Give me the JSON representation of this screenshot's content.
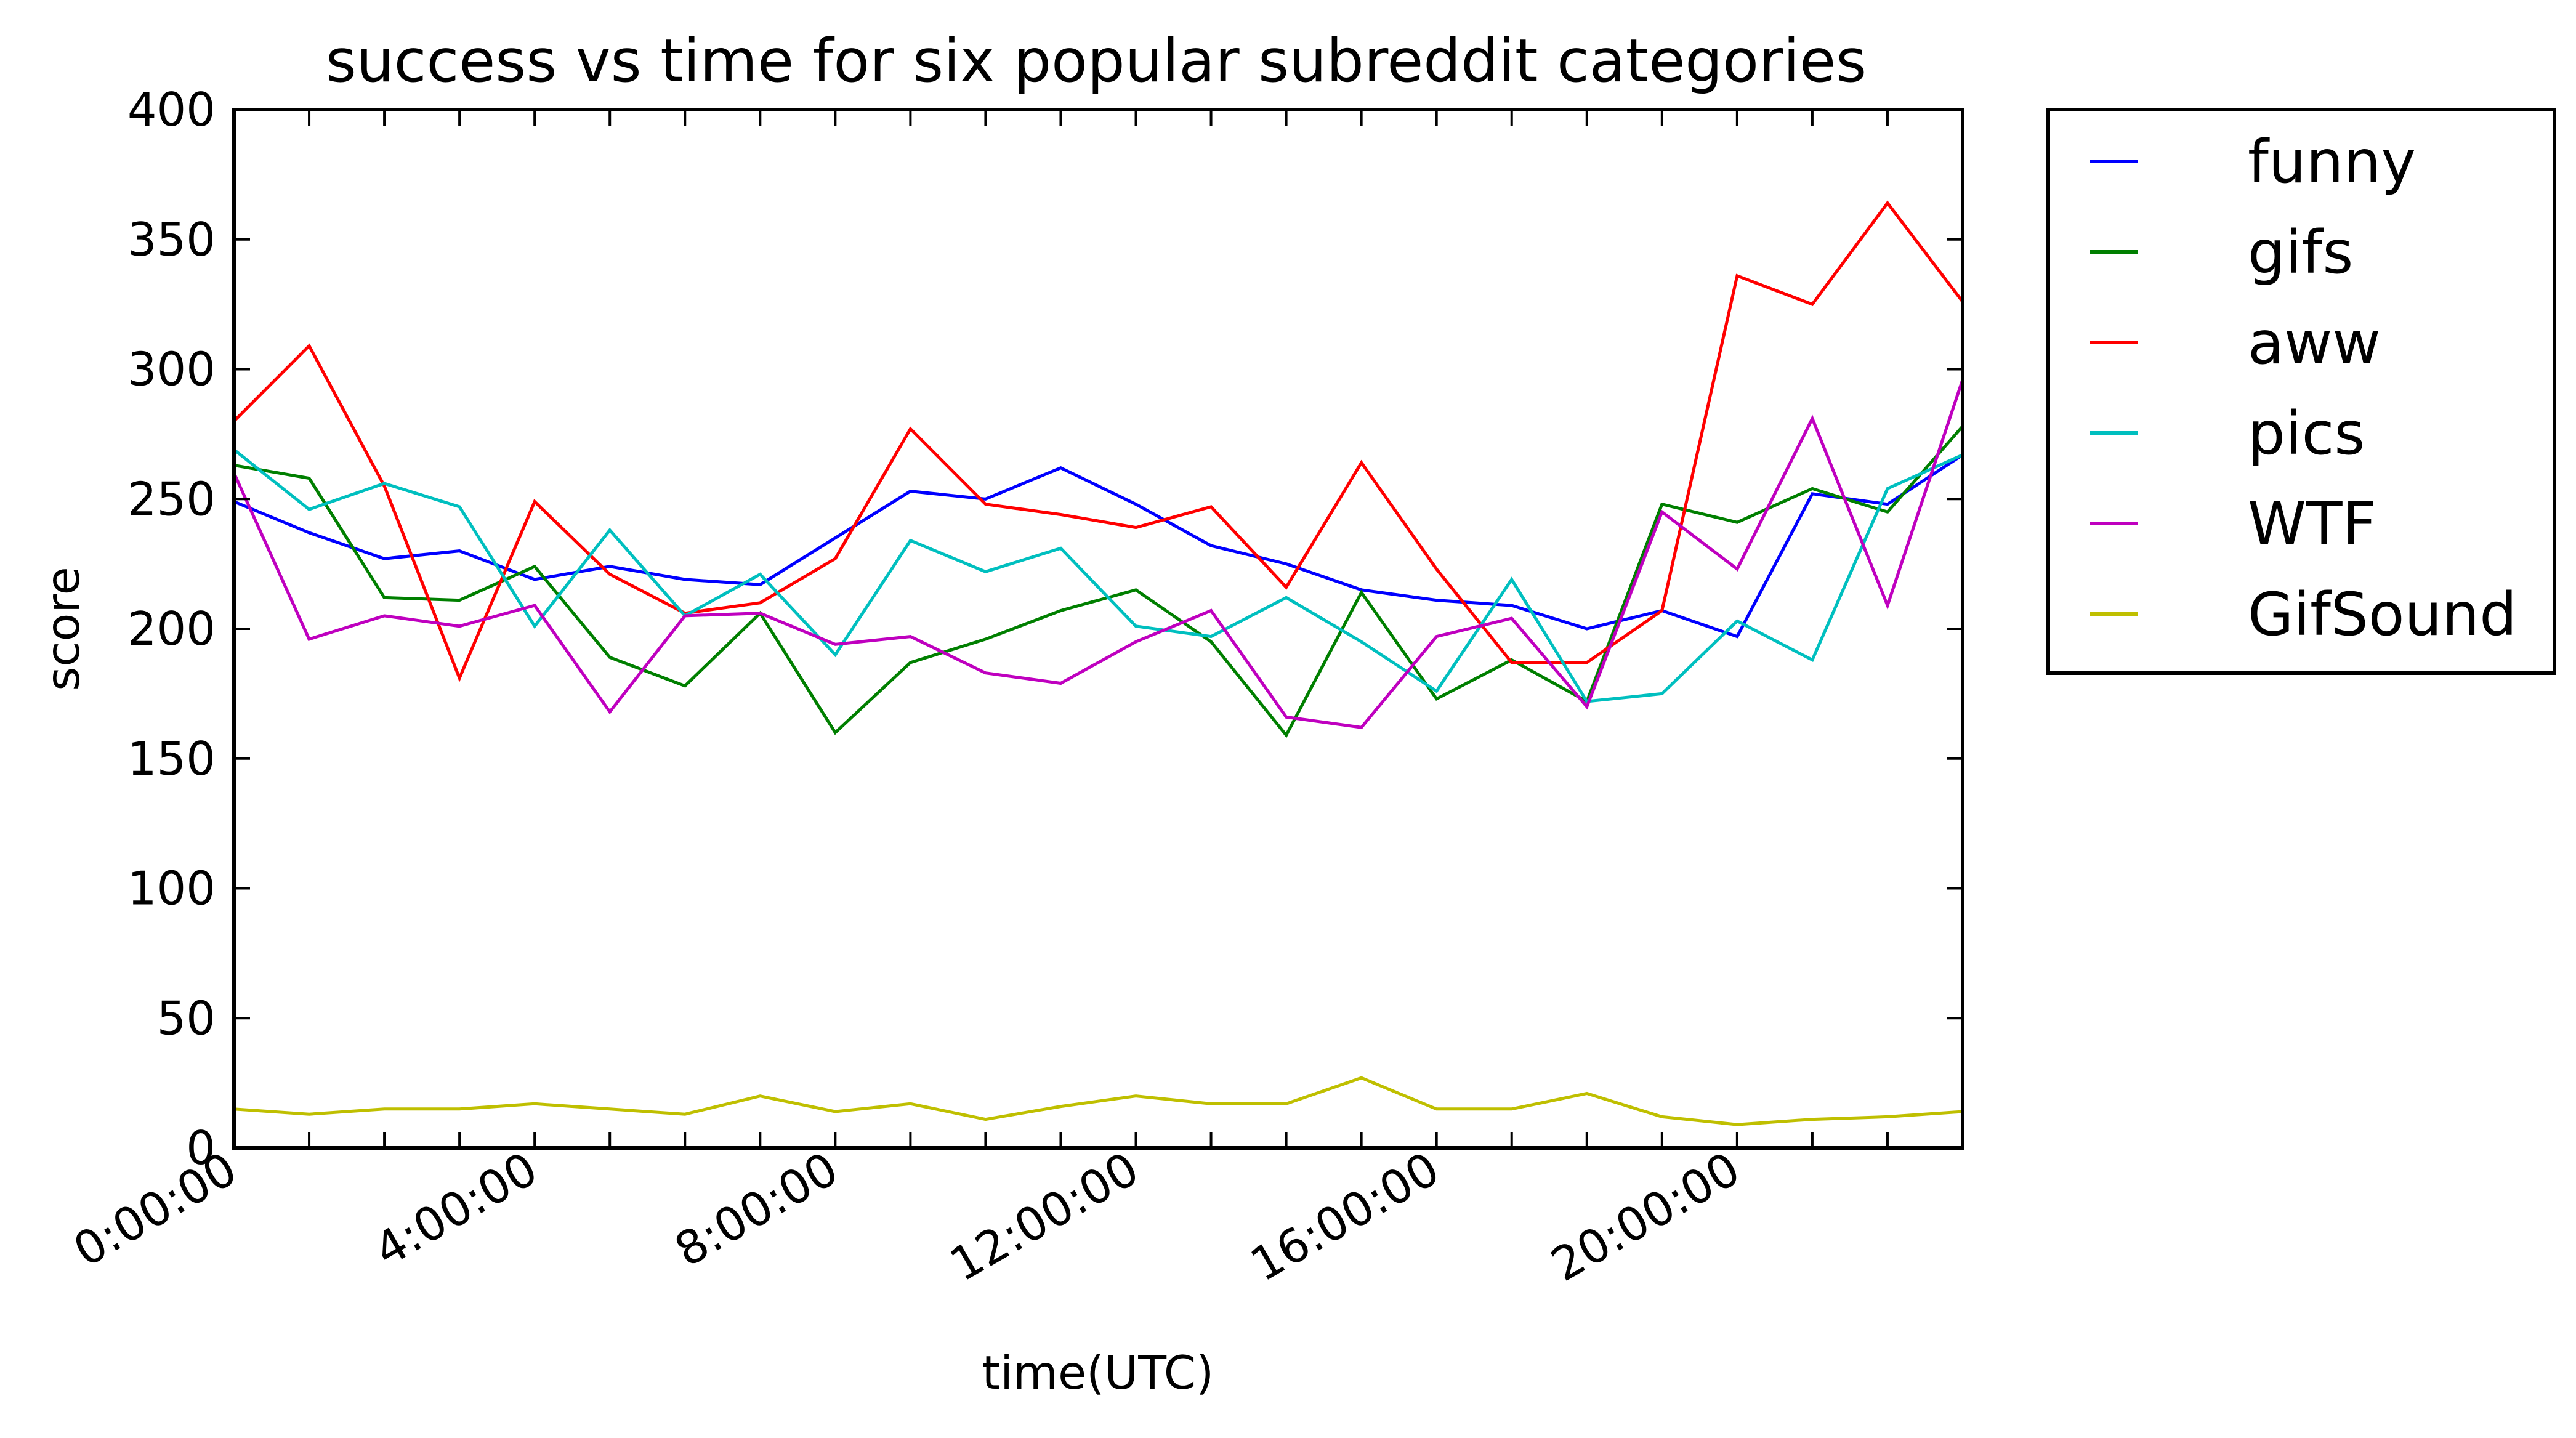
{
  "chart_data": {
    "type": "line",
    "title": "success vs time for six popular subreddit categories",
    "xlabel": "time(UTC)",
    "ylabel": "score",
    "x": [
      0,
      1,
      2,
      3,
      4,
      5,
      6,
      7,
      8,
      9,
      10,
      11,
      12,
      13,
      14,
      15,
      16,
      17,
      18,
      19,
      20,
      21,
      22,
      23
    ],
    "xlim": [
      0,
      23
    ],
    "ylim": [
      0,
      400
    ],
    "xticks": [
      {
        "value": 0,
        "label": "0:00:00"
      },
      {
        "value": 4,
        "label": "4:00:00"
      },
      {
        "value": 8,
        "label": "8:00:00"
      },
      {
        "value": 12,
        "label": "12:00:00"
      },
      {
        "value": 16,
        "label": "16:00:00"
      },
      {
        "value": 20,
        "label": "20:00:00"
      }
    ],
    "yticks": [
      {
        "value": 0,
        "label": "0"
      },
      {
        "value": 50,
        "label": "50"
      },
      {
        "value": 100,
        "label": "100"
      },
      {
        "value": 150,
        "label": "150"
      },
      {
        "value": 200,
        "label": "200"
      },
      {
        "value": 250,
        "label": "250"
      },
      {
        "value": 300,
        "label": "300"
      },
      {
        "value": 350,
        "label": "350"
      },
      {
        "value": 400,
        "label": "400"
      }
    ],
    "grid": false,
    "legend_position": "outside-right",
    "series": [
      {
        "name": "funny",
        "color": "#0000ff",
        "values": [
          249,
          237,
          227,
          230,
          219,
          224,
          219,
          217,
          235,
          253,
          250,
          262,
          248,
          232,
          225,
          215,
          211,
          209,
          200,
          207,
          197,
          252,
          248,
          267
        ]
      },
      {
        "name": "gifs",
        "color": "#007f00",
        "values": [
          263,
          258,
          212,
          211,
          224,
          189,
          178,
          206,
          160,
          187,
          196,
          207,
          215,
          195,
          159,
          214,
          173,
          188,
          172,
          248,
          241,
          254,
          245,
          278
        ]
      },
      {
        "name": "aww",
        "color": "#ff0000",
        "values": [
          280,
          309,
          255,
          181,
          249,
          221,
          206,
          210,
          227,
          277,
          248,
          244,
          239,
          247,
          216,
          264,
          223,
          187,
          187,
          207,
          336,
          325,
          364,
          326
        ]
      },
      {
        "name": "pics",
        "color": "#00bfbf",
        "values": [
          269,
          246,
          256,
          247,
          201,
          238,
          205,
          221,
          190,
          234,
          222,
          231,
          201,
          197,
          212,
          195,
          176,
          219,
          172,
          175,
          203,
          188,
          254,
          267
        ]
      },
      {
        "name": "WTF",
        "color": "#bf00bf",
        "values": [
          260,
          196,
          205,
          201,
          209,
          168,
          205,
          206,
          194,
          197,
          183,
          179,
          195,
          207,
          166,
          162,
          197,
          204,
          170,
          245,
          223,
          281,
          209,
          296
        ]
      },
      {
        "name": "GifSound",
        "color": "#bfbf00",
        "values": [
          15,
          13,
          15,
          15,
          17,
          15,
          13,
          20,
          14,
          17,
          11,
          16,
          20,
          17,
          17,
          27,
          15,
          15,
          21,
          12,
          9,
          11,
          12,
          14
        ]
      }
    ]
  }
}
